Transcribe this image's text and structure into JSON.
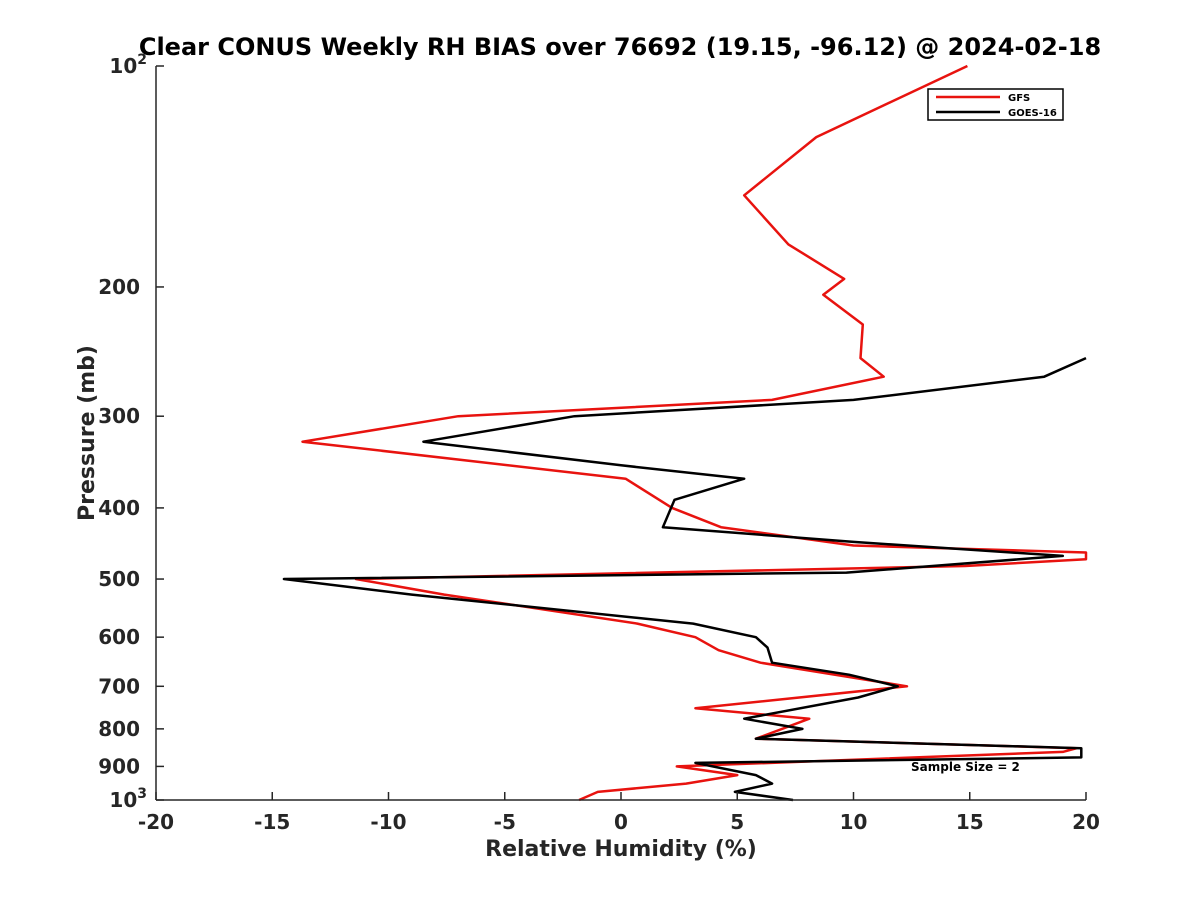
{
  "chart_data": {
    "type": "line",
    "title": "Clear CONUS Weekly RH BIAS over 76692 (19.15, -96.12) @ 2024-02-18",
    "xlabel": "Relative Humidity (%)",
    "ylabel": "Pressure (mb)",
    "xlim": [
      -20,
      20
    ],
    "ylim": [
      100,
      1000
    ],
    "yscale": "log",
    "y_reversed": true,
    "x_ticks": [
      "-20",
      "-15",
      "-10",
      "-5",
      "0",
      "5",
      "10",
      "15",
      "20"
    ],
    "y_ticks": [
      {
        "value": 100,
        "base": "10",
        "exp": "2"
      },
      {
        "value": 200,
        "label": "200"
      },
      {
        "value": 300,
        "label": "300"
      },
      {
        "value": 400,
        "label": "400"
      },
      {
        "value": 500,
        "label": "500"
      },
      {
        "value": 600,
        "label": "600"
      },
      {
        "value": 700,
        "label": "700"
      },
      {
        "value": 800,
        "label": "800"
      },
      {
        "value": 900,
        "label": "900"
      },
      {
        "value": 1000,
        "base": "10",
        "exp": "3"
      }
    ],
    "legend_position": "top-right",
    "annotation": "Sample Size = 2",
    "series": [
      {
        "name": "GFS",
        "color": "#e8130f",
        "points": [
          [
            14.9,
            100
          ],
          [
            8.4,
            125
          ],
          [
            5.3,
            150
          ],
          [
            7.2,
            175
          ],
          [
            9.6,
            195
          ],
          [
            8.7,
            205
          ],
          [
            10.4,
            225
          ],
          [
            10.3,
            250
          ],
          [
            11.3,
            265
          ],
          [
            6.5,
            285
          ],
          [
            -7.0,
            300
          ],
          [
            -13.7,
            325
          ],
          [
            0.2,
            365
          ],
          [
            2.2,
            400
          ],
          [
            4.3,
            425
          ],
          [
            10.0,
            450
          ],
          [
            20.0,
            460
          ],
          [
            20.0,
            470
          ],
          [
            14.8,
            480
          ],
          [
            -11.4,
            500
          ],
          [
            -7.6,
            525
          ],
          [
            0.7,
            575
          ],
          [
            3.2,
            600
          ],
          [
            4.2,
            625
          ],
          [
            6.0,
            650
          ],
          [
            12.3,
            700
          ],
          [
            3.2,
            750
          ],
          [
            8.1,
            775
          ],
          [
            5.8,
            825
          ],
          [
            19.6,
            850
          ],
          [
            19.0,
            860
          ],
          [
            2.4,
            900
          ],
          [
            5.0,
            925
          ],
          [
            2.8,
            950
          ],
          [
            -1.0,
            975
          ],
          [
            -1.8,
            1000
          ]
        ]
      },
      {
        "name": "GOES-16",
        "color": "#000000",
        "points": [
          [
            20.0,
            250
          ],
          [
            18.2,
            265
          ],
          [
            10.0,
            285
          ],
          [
            -2.0,
            300
          ],
          [
            -8.5,
            325
          ],
          [
            0.0,
            350
          ],
          [
            5.3,
            365
          ],
          [
            2.3,
            390
          ],
          [
            1.8,
            425
          ],
          [
            10.0,
            445
          ],
          [
            19.0,
            465
          ],
          [
            9.7,
            490
          ],
          [
            -14.5,
            500
          ],
          [
            -9.0,
            525
          ],
          [
            3.1,
            575
          ],
          [
            5.8,
            600
          ],
          [
            6.3,
            620
          ],
          [
            6.5,
            650
          ],
          [
            9.8,
            675
          ],
          [
            11.9,
            700
          ],
          [
            10.2,
            725
          ],
          [
            5.3,
            775
          ],
          [
            7.8,
            800
          ],
          [
            5.8,
            825
          ],
          [
            19.8,
            850
          ],
          [
            19.8,
            875
          ],
          [
            3.2,
            890
          ],
          [
            5.8,
            925
          ],
          [
            6.5,
            950
          ],
          [
            4.9,
            975
          ],
          [
            7.4,
            1000
          ]
        ]
      }
    ]
  }
}
